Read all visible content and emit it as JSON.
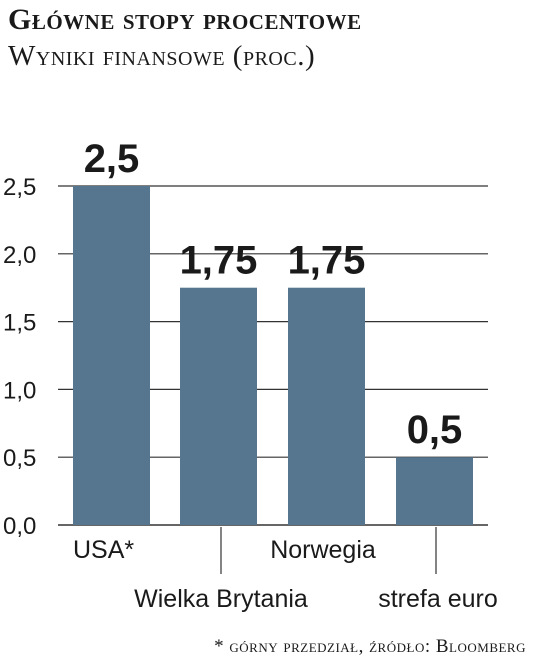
{
  "header": {
    "title": "Główne stopy procentowe",
    "subtitle": "Wyniki finansowe (proc.)"
  },
  "footnote": "* górny przedział, źródło: Bloomberg",
  "colors": {
    "bar": "#56768f",
    "grid": "#333333",
    "text": "#1a1a1a"
  },
  "chart_data": {
    "type": "bar",
    "title": "Główne stopy procentowe",
    "subtitle": "Wyniki finansowe (proc.)",
    "categories": [
      "USA*",
      "Wielka Brytania",
      "Norwegia",
      "strefa euro"
    ],
    "values": [
      2.5,
      1.75,
      1.75,
      0.5
    ],
    "data_labels": [
      "2,5",
      "1,75",
      "1,75",
      "0,5"
    ],
    "ylim": [
      0,
      2.5
    ],
    "yticks": [
      0,
      0.5,
      1.0,
      1.5,
      2.0,
      2.5
    ],
    "ytick_labels": [
      "0,0",
      "0,5",
      "1,0",
      "1,5",
      "2,0",
      "2,5"
    ],
    "grid": true,
    "legend": "none"
  }
}
